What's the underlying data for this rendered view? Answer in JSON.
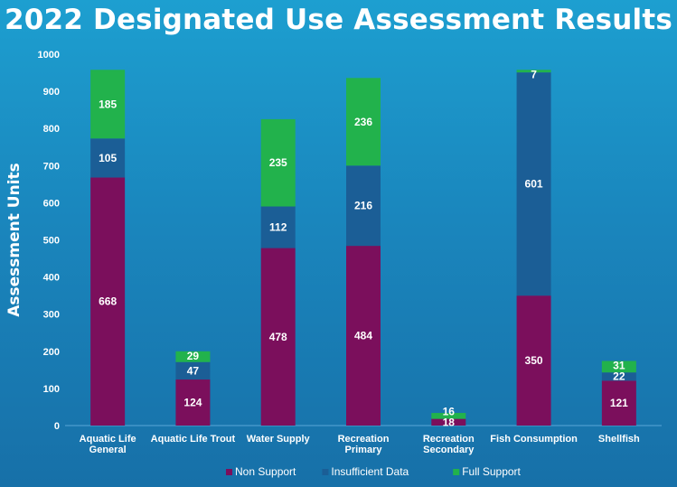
{
  "title": "2022 Designated Use Assessment Results",
  "chart_data": {
    "type": "bar",
    "stacked": true,
    "title": "2022 Designated Use Assessment Results",
    "xlabel": "",
    "ylabel": "Assessment Units",
    "ylim": [
      0,
      1000
    ],
    "yticks": [
      0,
      100,
      200,
      300,
      400,
      500,
      600,
      700,
      800,
      900,
      1000
    ],
    "grid": false,
    "legend_position": "bottom",
    "categories": [
      [
        "Aquatic Life",
        "General"
      ],
      [
        "Aquatic Life Trout"
      ],
      [
        "Water Supply"
      ],
      [
        "Recreation",
        "Primary"
      ],
      [
        "Recreation",
        "Secondary"
      ],
      [
        "Fish Consumption"
      ],
      [
        "Shellfish"
      ]
    ],
    "series": [
      {
        "name": "Non Support",
        "color": "#7b0f5c",
        "values": [
          668,
          124,
          478,
          484,
          18,
          350,
          121
        ]
      },
      {
        "name": "Insufficient Data",
        "color": "#1b5e96",
        "values": [
          105,
          47,
          112,
          216,
          0,
          601,
          22
        ]
      },
      {
        "name": "Full Support",
        "color": "#22b24c",
        "values": [
          185,
          29,
          235,
          236,
          16,
          7,
          31
        ]
      }
    ]
  }
}
